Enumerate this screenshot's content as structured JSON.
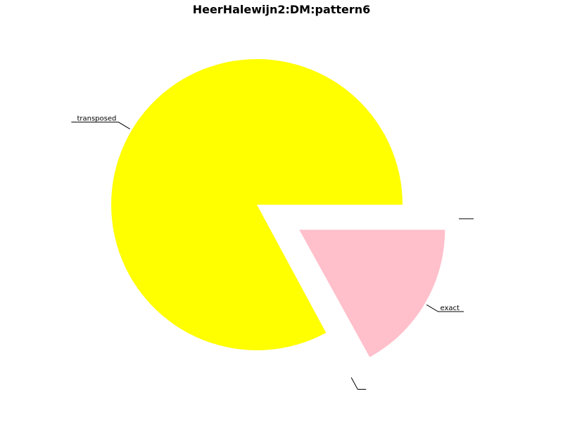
{
  "chart_data": {
    "type": "pie",
    "title": "HeerHalewijn2:DM:pattern6",
    "start_angle_deg": 0,
    "direction": "clockwise",
    "slices": [
      {
        "label": "exact",
        "value": 17,
        "color": "#FFC0CB",
        "exploded": true
      },
      {
        "label": "",
        "value": 0.15,
        "color": "#FFFFFF",
        "exploded": true
      },
      {
        "label": "transposed",
        "value": 83,
        "color": "#FFFF00",
        "exploded": false
      }
    ],
    "extra_leaders": [
      {
        "slice_label": ""
      }
    ]
  }
}
